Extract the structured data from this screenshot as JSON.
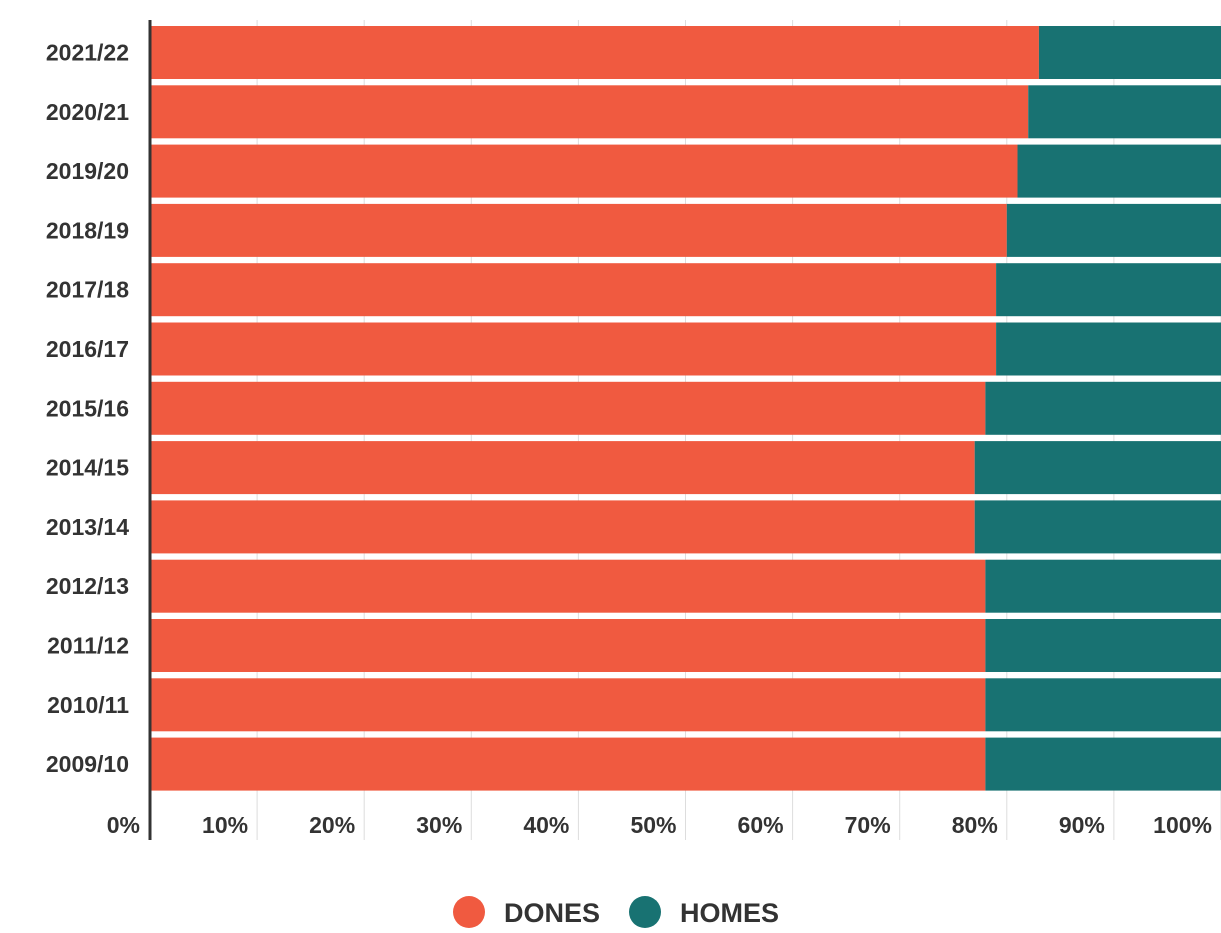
{
  "chart_data": {
    "type": "bar",
    "orientation": "horizontal",
    "stacked": true,
    "categories": [
      "2021/22",
      "2020/21",
      "2019/20",
      "2018/19",
      "2017/18",
      "2016/17",
      "2015/16",
      "2014/15",
      "2013/14",
      "2012/13",
      "2011/12",
      "2010/11",
      "2009/10"
    ],
    "series": [
      {
        "name": "DONES",
        "color": "#f05a40",
        "values": [
          83,
          82,
          81,
          80,
          79,
          79,
          78,
          77,
          77,
          78,
          78,
          78,
          78
        ]
      },
      {
        "name": "HOMES",
        "color": "#187272",
        "values": [
          17,
          18,
          19,
          20,
          21,
          21,
          22,
          23,
          23,
          22,
          22,
          22,
          22
        ]
      }
    ],
    "x_ticks": [
      "0%",
      "10%",
      "20%",
      "30%",
      "40%",
      "50%",
      "60%",
      "70%",
      "80%",
      "90%",
      "100%"
    ],
    "xlim": [
      0,
      100
    ],
    "grid": true,
    "legend_position": "bottom-center",
    "title": "",
    "xlabel": "",
    "ylabel": ""
  }
}
